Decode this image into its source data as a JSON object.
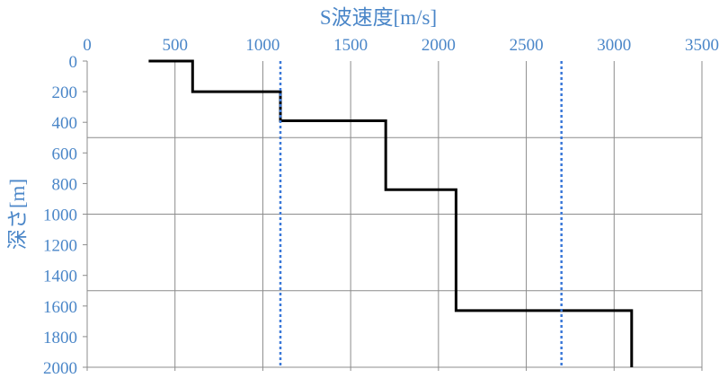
{
  "chart_data": {
    "type": "line",
    "x_axis": {
      "label": "S波速度[m/s]",
      "position": "top",
      "min": 0,
      "max": 3500,
      "ticks": [
        0,
        500,
        1000,
        1500,
        2000,
        2500,
        3000,
        3500
      ]
    },
    "y_axis": {
      "label": "深さ[m]",
      "inverted": true,
      "min": 0,
      "max": 2000,
      "ticks": [
        0,
        200,
        400,
        600,
        800,
        1000,
        1200,
        1400,
        1600,
        1800,
        2000
      ]
    },
    "grid": {
      "vertical_at_x": [
        500,
        1000,
        1500,
        2000,
        2500,
        3000,
        3500
      ],
      "horizontal_at_y": [
        500,
        1000,
        1500
      ]
    },
    "series": [
      {
        "style": "solid",
        "color": "#000000",
        "points": [
          [
            350,
            0
          ],
          [
            600,
            0
          ],
          [
            600,
            200
          ],
          [
            1100,
            200
          ],
          [
            1100,
            390
          ],
          [
            1700,
            390
          ],
          [
            1700,
            840
          ],
          [
            2100,
            840
          ],
          [
            2100,
            1630
          ],
          [
            3100,
            1630
          ],
          [
            3100,
            2000
          ]
        ]
      },
      {
        "style": "dotted",
        "color": "#3a78d8",
        "points": [
          [
            1100,
            0
          ],
          [
            1100,
            2000
          ]
        ]
      },
      {
        "style": "dotted",
        "color": "#3a78d8",
        "points": [
          [
            2700,
            0
          ],
          [
            2700,
            2000
          ]
        ]
      }
    ],
    "colors": {
      "axis_text": "#4a86c8",
      "grid": "#8c8c8c",
      "axis_line": "#8c8c8c"
    }
  }
}
